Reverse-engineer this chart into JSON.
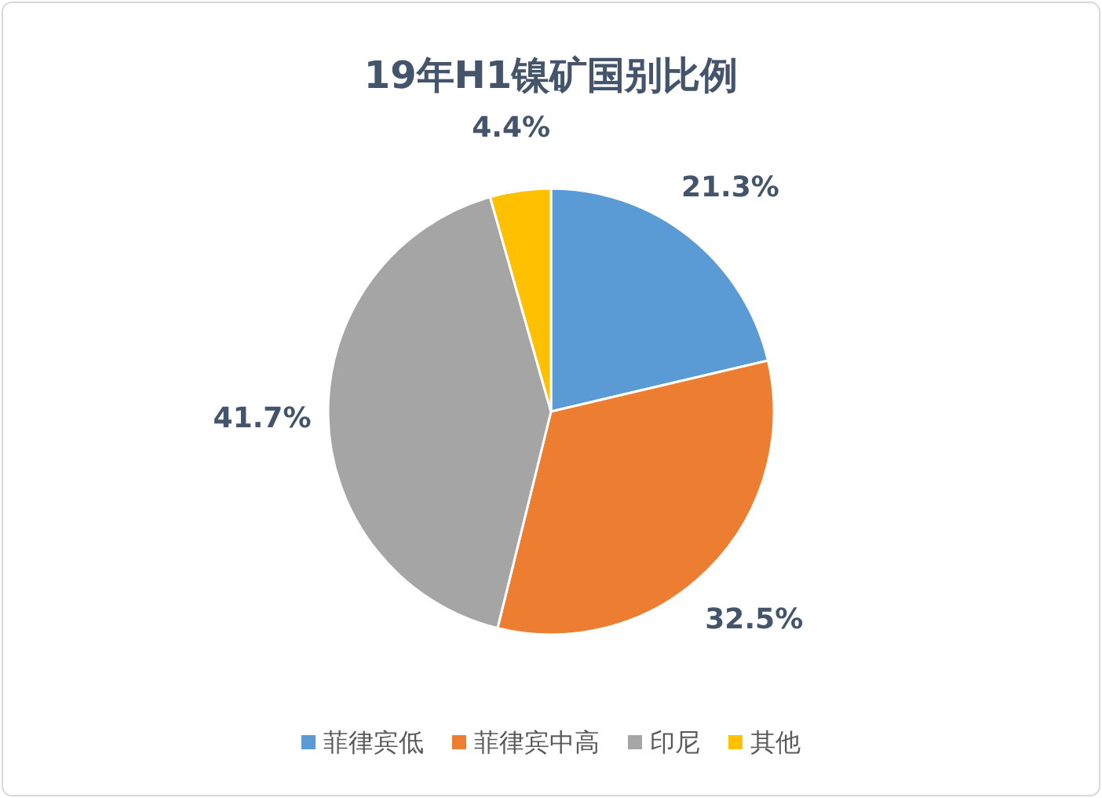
{
  "chart_data": {
    "type": "pie",
    "title": "19年H1镍矿国别比例",
    "categories": [
      "菲律宾低",
      "菲律宾中高",
      "印尼",
      "其他"
    ],
    "values": [
      21.3,
      32.5,
      41.7,
      4.4
    ],
    "value_labels": [
      "21.3%",
      "32.5%",
      "41.7%",
      "4.4%"
    ],
    "colors": [
      "#5b9bd5",
      "#ed7d31",
      "#a5a5a5",
      "#ffc000"
    ],
    "legend": "bottom"
  }
}
